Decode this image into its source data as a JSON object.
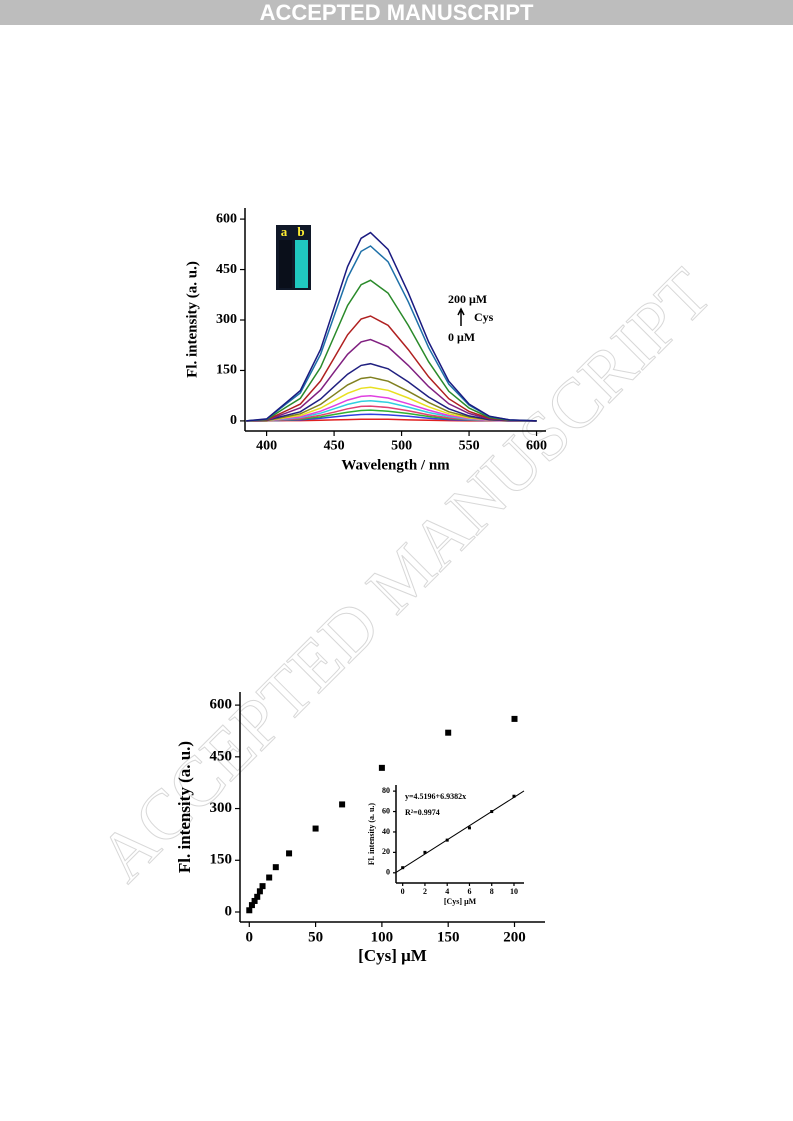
{
  "header": {
    "title": "ACCEPTED MANUSCRIPT"
  },
  "watermark": {
    "text": "ACCEPTED MANUSCRIPT"
  },
  "chart_data": [
    {
      "type": "line",
      "x_label": "Wavelength / nm",
      "y_label": "Fl. intensity (a. u.)",
      "x": [
        385,
        400,
        415,
        425,
        440,
        450,
        460,
        470,
        477,
        490,
        505,
        520,
        535,
        550,
        565,
        580,
        600
      ],
      "series": [
        {
          "color": "#e02020",
          "values": [
            0,
            0,
            1,
            1,
            2,
            3,
            4,
            5,
            5,
            5,
            3,
            2,
            1,
            0,
            0,
            0,
            0
          ]
        },
        {
          "color": "#3040e0",
          "values": [
            0,
            0,
            2,
            3,
            8,
            12,
            16,
            19,
            20,
            18,
            14,
            8,
            4,
            2,
            1,
            0,
            0
          ]
        },
        {
          "color": "#30b030",
          "values": [
            0,
            0,
            3,
            5,
            12,
            19,
            26,
            31,
            32,
            29,
            22,
            13,
            7,
            3,
            1,
            0,
            0
          ]
        },
        {
          "color": "#e04070",
          "values": [
            0,
            0,
            4,
            7,
            17,
            26,
            36,
            43,
            44,
            40,
            30,
            18,
            9,
            4,
            1,
            0,
            0
          ]
        },
        {
          "color": "#30d0e0",
          "values": [
            0,
            1,
            6,
            10,
            23,
            36,
            49,
            58,
            60,
            55,
            41,
            25,
            13,
            5,
            2,
            0,
            0
          ]
        },
        {
          "color": "#e040e0",
          "values": [
            0,
            1,
            8,
            12,
            29,
            45,
            62,
            73,
            75,
            68,
            51,
            32,
            16,
            7,
            2,
            0,
            0
          ]
        },
        {
          "color": "#e8e020",
          "values": [
            0,
            1,
            10,
            16,
            38,
            60,
            82,
            97,
            100,
            91,
            68,
            42,
            21,
            9,
            3,
            1,
            0
          ]
        },
        {
          "color": "#808020",
          "values": [
            0,
            1,
            13,
            21,
            49,
            78,
            107,
            126,
            130,
            118,
            88,
            55,
            27,
            12,
            3,
            1,
            0
          ]
        },
        {
          "color": "#202080",
          "values": [
            0,
            2,
            17,
            27,
            65,
            102,
            139,
            165,
            170,
            155,
            116,
            71,
            36,
            15,
            4,
            1,
            0
          ]
        },
        {
          "color": "#802080",
          "values": [
            0,
            2,
            24,
            39,
            92,
            145,
            198,
            235,
            242,
            220,
            165,
            102,
            51,
            22,
            6,
            1,
            0
          ]
        },
        {
          "color": "#b02020",
          "values": [
            0,
            3,
            31,
            50,
            119,
            187,
            256,
            303,
            312,
            284,
            212,
            131,
            66,
            28,
            8,
            2,
            0
          ]
        },
        {
          "color": "#2a8a2a",
          "values": [
            0,
            4,
            42,
            67,
            159,
            251,
            343,
            405,
            418,
            380,
            284,
            176,
            88,
            38,
            10,
            2,
            0
          ]
        },
        {
          "color": "#1e70a8",
          "values": [
            0,
            5,
            52,
            83,
            198,
            312,
            426,
            504,
            520,
            473,
            354,
            218,
            109,
            47,
            13,
            3,
            0
          ]
        },
        {
          "color": "#1a1a80",
          "values": [
            0,
            6,
            56,
            90,
            213,
            336,
            459,
            543,
            560,
            510,
            381,
            235,
            118,
            50,
            14,
            3,
            0
          ]
        }
      ],
      "xlim": [
        384,
        607
      ],
      "xticks": [
        400,
        450,
        500,
        550,
        600
      ],
      "ylim": [
        -30,
        633
      ],
      "yticks": [
        0,
        150,
        300,
        450,
        600
      ],
      "annotations": [
        "200 μM",
        "Cys",
        "0 μM"
      ],
      "photo_labels": [
        "a",
        "b"
      ]
    },
    {
      "type": "scatter",
      "x_label": "[Cys] μM",
      "y_label": "Fl. intensity (a. u.)",
      "x": [
        0,
        2,
        4,
        6,
        8,
        10,
        15,
        20,
        30,
        50,
        70,
        100,
        150,
        200
      ],
      "values": [
        5,
        20,
        32,
        44,
        60,
        75,
        100,
        130,
        170,
        242,
        312,
        418,
        520,
        560
      ],
      "color": "#000000",
      "xlim": [
        -7,
        223
      ],
      "xticks": [
        0,
        50,
        100,
        150,
        200
      ],
      "ylim": [
        -29,
        638
      ],
      "yticks": [
        0,
        150,
        300,
        450,
        600
      ]
    },
    {
      "type": "scatter",
      "x_label": "[Cys] μM",
      "y_label": "Fl. intensity (a. u.)",
      "x": [
        0,
        2,
        4,
        6,
        8,
        10
      ],
      "values": [
        5,
        20,
        32,
        44,
        60,
        75
      ],
      "color": "#000000",
      "fit": {
        "intercept": 4.5196,
        "slope": 6.9382
      },
      "annotations": [
        "y=4.5196+6.9382x",
        "R²=0.9974"
      ],
      "xlim": [
        -0.6,
        10.9
      ],
      "xticks": [
        0,
        2,
        4,
        6,
        8,
        10
      ],
      "ylim": [
        -10,
        86
      ],
      "yticks": [
        0,
        20,
        40,
        60,
        80
      ]
    }
  ]
}
